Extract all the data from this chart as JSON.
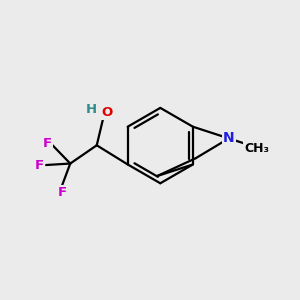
{
  "bg_color": "#ebebeb",
  "bond_color": "#000000",
  "atom_colors": {
    "O": "#e00000",
    "H_OH": "#2e8b8b",
    "F": "#cc00cc",
    "N": "#2020dd",
    "C": "#000000"
  },
  "figsize": [
    3.0,
    3.0
  ],
  "dpi": 100
}
